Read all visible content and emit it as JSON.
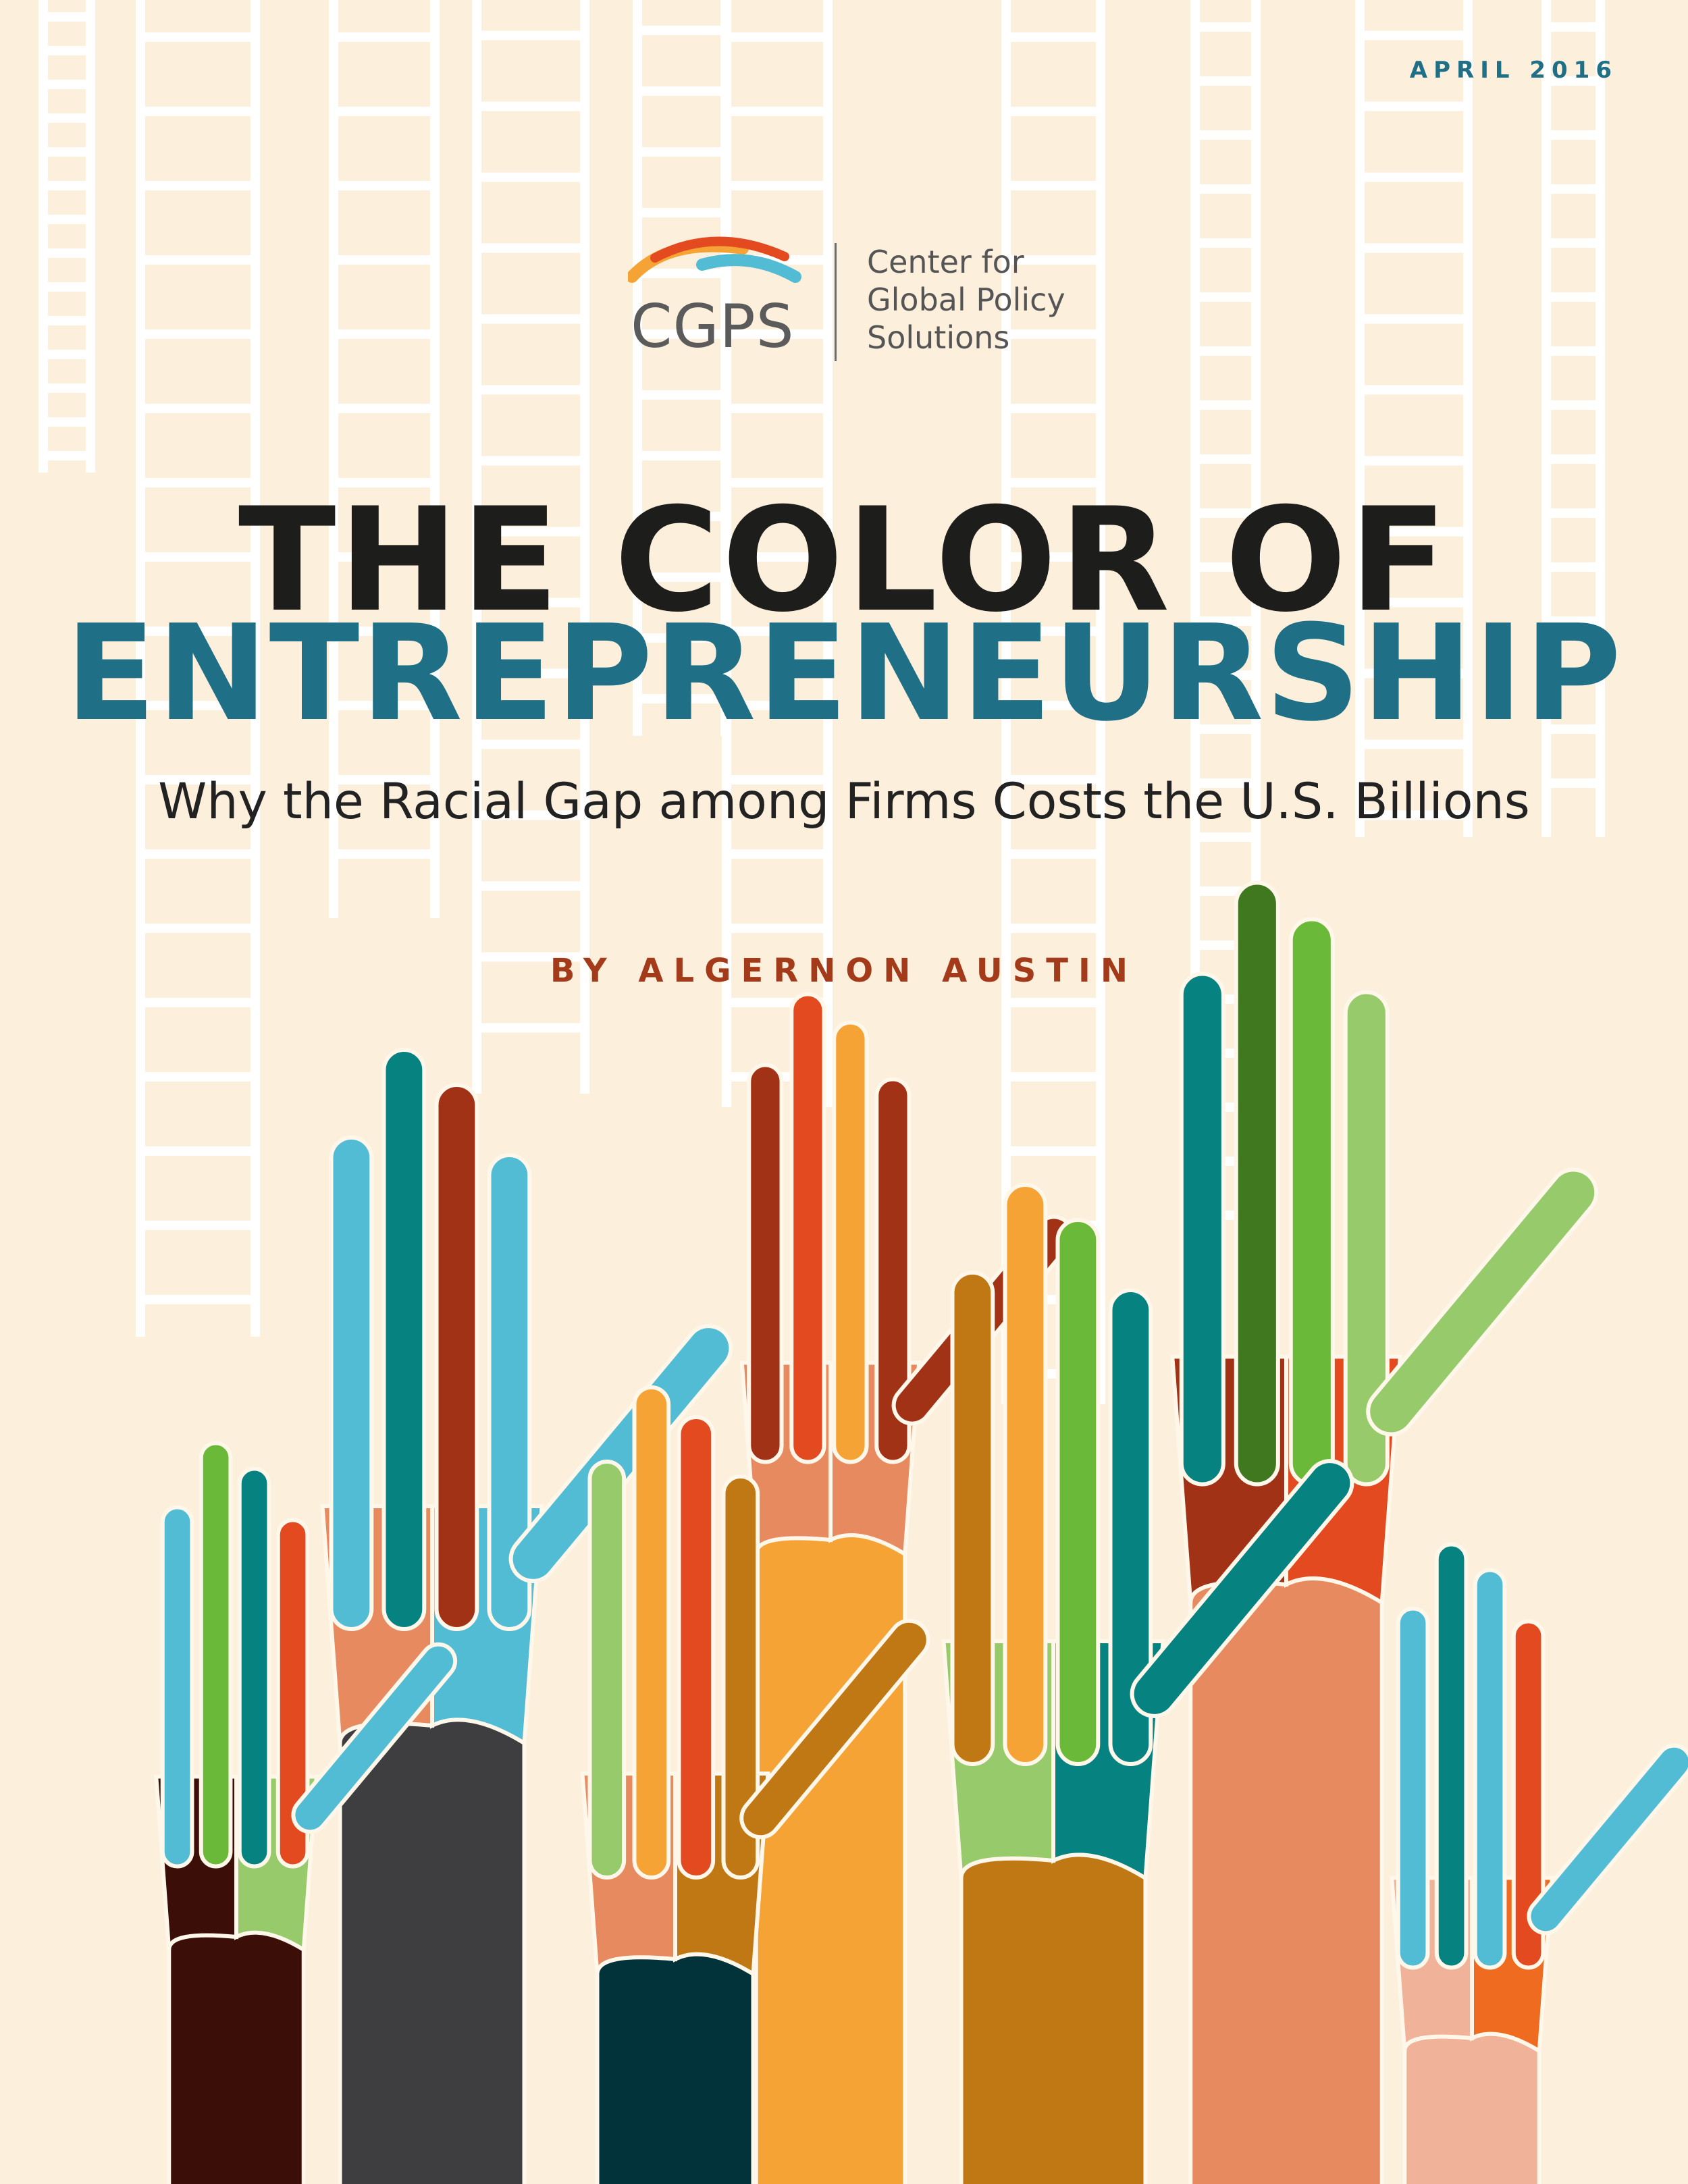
{
  "date": "APRIL 2016",
  "logo": {
    "mark": "CGPS",
    "name_lines": [
      "Center for",
      "Global Policy",
      "Solutions"
    ]
  },
  "title": {
    "line1": "THE COLOR OF",
    "line2": "ENTREPRENEURSHIP"
  },
  "subtitle": "Why the Racial Gap among Firms Costs the U.S. Billions",
  "byline": "BY ALGERNON AUSTIN",
  "colors": {
    "background": "#fcefdc",
    "ladder": "#ffffff",
    "title_dark": "#1d1d1b",
    "title_teal": "#1f6f86",
    "byline": "#a33a1a",
    "outline": "#fff7ea"
  },
  "hand_palette": [
    "#52bcd5",
    "#068281",
    "#a23216",
    "#e88a60",
    "#3e3d3f",
    "#6ab938",
    "#e34a20",
    "#f5a334",
    "#c07814",
    "#97ca6a",
    "#407820",
    "#3c0e08",
    "#03333a",
    "#f0b298",
    "#ef6b20"
  ]
}
